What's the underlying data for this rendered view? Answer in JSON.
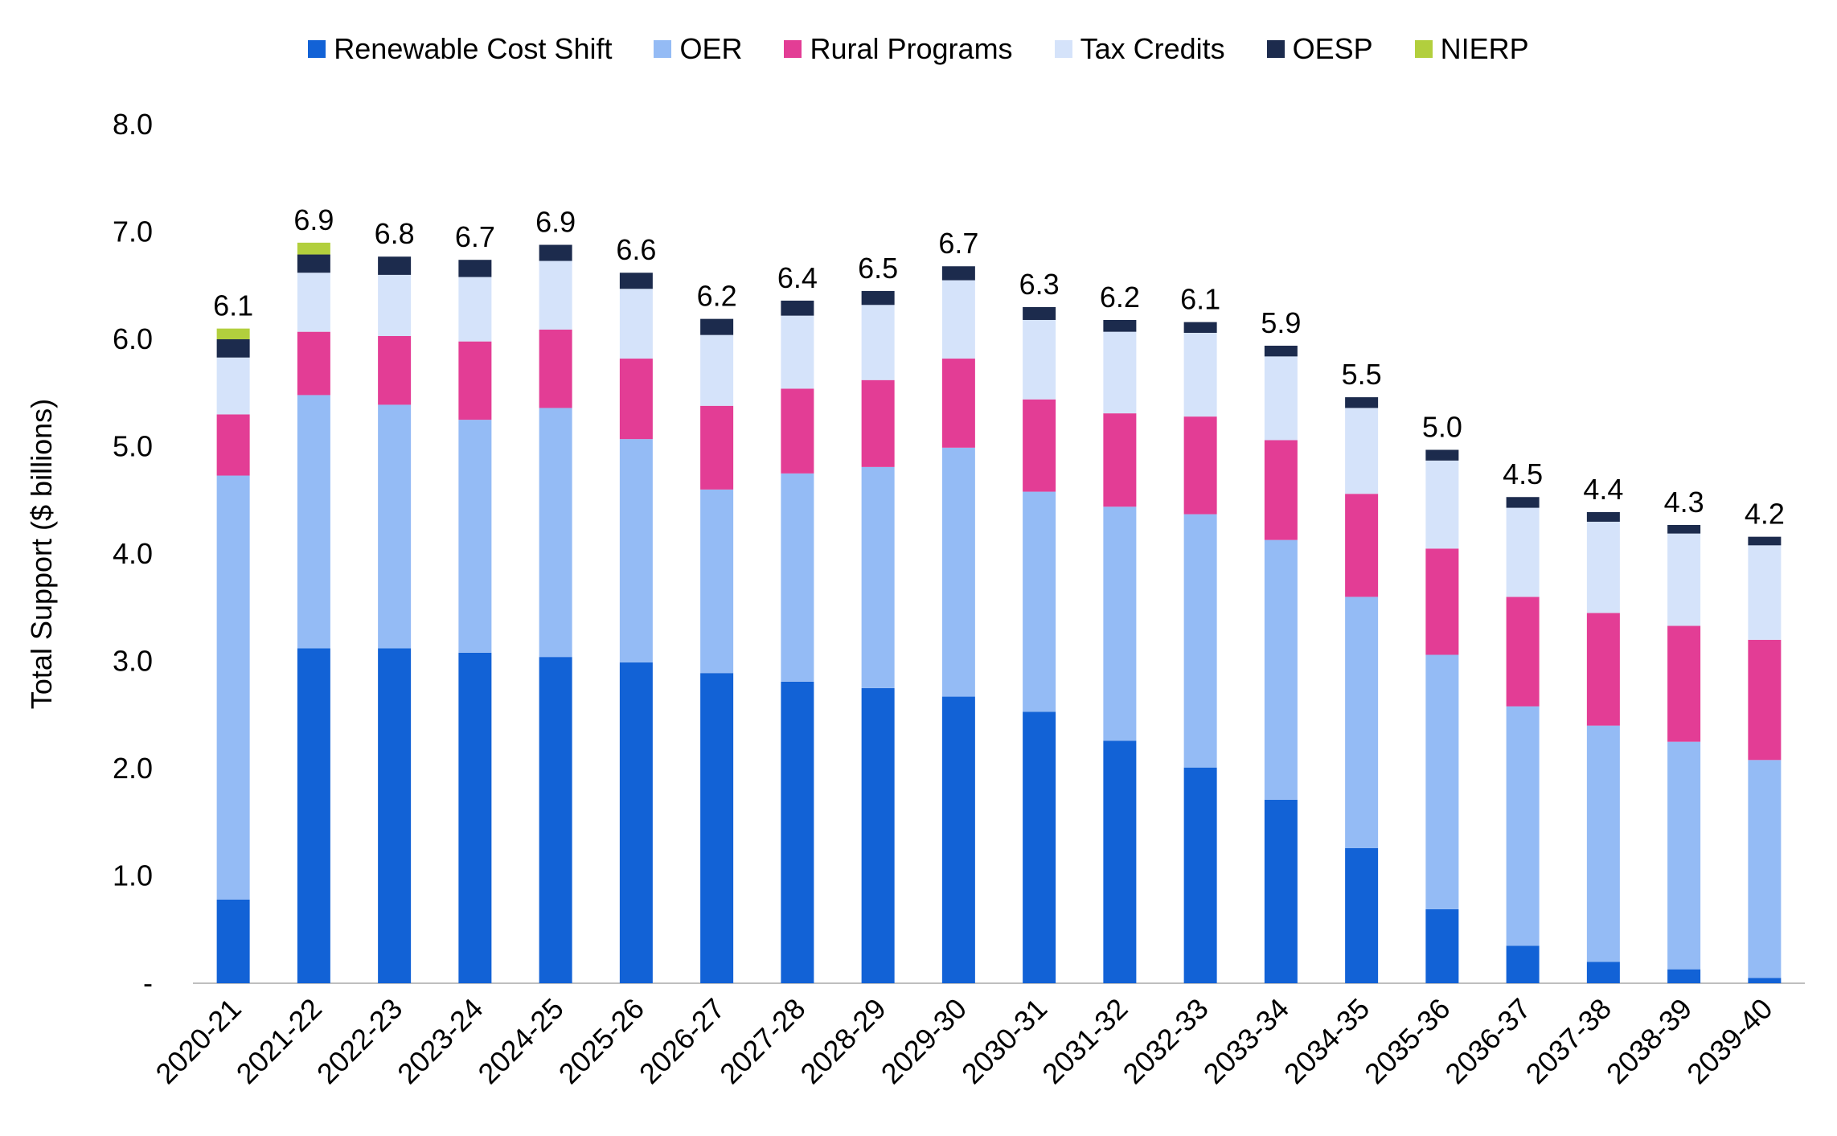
{
  "chart_data": {
    "type": "bar",
    "stacked": true,
    "title": "",
    "xlabel": "",
    "ylabel": "Total Support ($ billions)",
    "ylim": [
      0,
      8
    ],
    "yticks": [
      {
        "value": 0,
        "label": "-"
      },
      {
        "value": 1,
        "label": "1.0"
      },
      {
        "value": 2,
        "label": "2.0"
      },
      {
        "value": 3,
        "label": "3.0"
      },
      {
        "value": 4,
        "label": "4.0"
      },
      {
        "value": 5,
        "label": "5.0"
      },
      {
        "value": 6,
        "label": "6.0"
      },
      {
        "value": 7,
        "label": "7.0"
      },
      {
        "value": 8,
        "label": "8.0"
      }
    ],
    "grid": false,
    "legend_position": "top",
    "categories": [
      "2020-21",
      "2021-22",
      "2022-23",
      "2023-24",
      "2024-25",
      "2025-26",
      "2026-27",
      "2027-28",
      "2028-29",
      "2029-30",
      "2030-31",
      "2031-32",
      "2032-33",
      "2033-34",
      "2034-35",
      "2035-36",
      "2036-37",
      "2037-38",
      "2038-39",
      "2039-40"
    ],
    "series": [
      {
        "name": "Renewable Cost Shift",
        "color": "#1262d6",
        "values": [
          0.78,
          3.12,
          3.12,
          3.08,
          3.04,
          2.99,
          2.89,
          2.81,
          2.75,
          2.67,
          2.53,
          2.26,
          2.01,
          1.71,
          1.26,
          0.69,
          0.35,
          0.2,
          0.13,
          0.05
        ]
      },
      {
        "name": "OER",
        "color": "#94bbf5",
        "values": [
          3.95,
          2.36,
          2.27,
          2.17,
          2.32,
          2.08,
          1.71,
          1.94,
          2.06,
          2.32,
          2.05,
          2.18,
          2.36,
          2.42,
          2.34,
          2.37,
          2.23,
          2.2,
          2.12,
          2.03
        ]
      },
      {
        "name": "Rural Programs",
        "color": "#e33d95",
        "values": [
          0.57,
          0.59,
          0.64,
          0.73,
          0.73,
          0.75,
          0.78,
          0.79,
          0.81,
          0.83,
          0.86,
          0.87,
          0.91,
          0.93,
          0.96,
          0.99,
          1.02,
          1.05,
          1.08,
          1.12
        ]
      },
      {
        "name": "Tax Credits",
        "color": "#d5e3fa",
        "values": [
          0.53,
          0.55,
          0.57,
          0.6,
          0.64,
          0.65,
          0.66,
          0.68,
          0.7,
          0.73,
          0.74,
          0.76,
          0.78,
          0.78,
          0.8,
          0.82,
          0.83,
          0.85,
          0.86,
          0.88
        ]
      },
      {
        "name": "OESP",
        "color": "#1c2b4d",
        "values": [
          0.17,
          0.17,
          0.17,
          0.16,
          0.15,
          0.15,
          0.15,
          0.14,
          0.13,
          0.13,
          0.12,
          0.11,
          0.1,
          0.1,
          0.1,
          0.1,
          0.1,
          0.09,
          0.08,
          0.08
        ]
      },
      {
        "name": "NIERP",
        "color": "#b2cf3d",
        "values": [
          0.1,
          0.11,
          0,
          0,
          0,
          0,
          0,
          0,
          0,
          0,
          0,
          0,
          0,
          0,
          0,
          0,
          0,
          0,
          0,
          0
        ]
      }
    ],
    "totals_labels": [
      "6.1",
      "6.9",
      "6.8",
      "6.7",
      "6.9",
      "6.6",
      "6.2",
      "6.4",
      "6.5",
      "6.7",
      "6.3",
      "6.2",
      "6.1",
      "5.9",
      "5.5",
      "5.0",
      "4.5",
      "4.4",
      "4.3",
      "4.2"
    ]
  }
}
